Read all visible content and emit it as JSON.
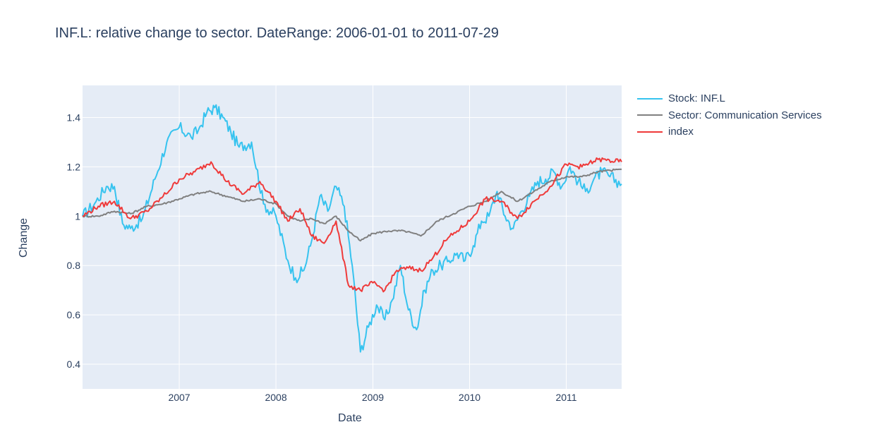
{
  "chart_data": {
    "type": "line",
    "title": "INF.L: relative change to sector.  DateRange: 2006-01-01 to 2011-07-29",
    "xlabel": "Date",
    "ylabel": "Change",
    "x_tick_labels": [
      "2007",
      "2008",
      "2009",
      "2010",
      "2011"
    ],
    "y_tick_labels": [
      "0.4",
      "0.6",
      "0.8",
      "1",
      "1.2",
      "1.4"
    ],
    "xlim": [
      "2006-01-01",
      "2011-07-29"
    ],
    "ylim": [
      0.3,
      1.53
    ],
    "grid": true,
    "legend_position": "right",
    "series": [
      {
        "name": "Stock: INF.L",
        "color": "#36c3ef",
        "x": [
          "2006-01-01",
          "2006-02-15",
          "2006-04-01",
          "2006-05-01",
          "2006-06-01",
          "2006-07-01",
          "2006-08-15",
          "2006-10-01",
          "2006-11-15",
          "2007-01-01",
          "2007-02-15",
          "2007-03-15",
          "2007-04-15",
          "2007-05-15",
          "2007-06-15",
          "2007-07-15",
          "2007-08-15",
          "2007-10-01",
          "2007-11-15",
          "2008-01-01",
          "2008-02-15",
          "2008-03-15",
          "2008-04-15",
          "2008-05-15",
          "2008-06-15",
          "2008-07-15",
          "2008-08-15",
          "2008-09-15",
          "2008-10-15",
          "2008-11-15",
          "2008-12-15",
          "2009-01-15",
          "2009-02-15",
          "2009-03-15",
          "2009-04-15",
          "2009-05-15",
          "2009-06-15",
          "2009-07-15",
          "2009-08-15",
          "2009-09-15",
          "2009-10-15",
          "2009-11-15",
          "2009-12-15",
          "2010-01-15",
          "2010-02-15",
          "2010-03-15",
          "2010-04-15",
          "2010-05-15",
          "2010-06-15",
          "2010-07-15",
          "2010-08-15",
          "2010-09-15",
          "2010-10-15",
          "2010-11-15",
          "2010-12-15",
          "2011-01-15",
          "2011-02-15",
          "2011-03-15",
          "2011-04-15",
          "2011-05-15",
          "2011-06-15",
          "2011-07-29"
        ],
        "values": [
          1.0,
          1.05,
          1.12,
          1.12,
          0.97,
          0.95,
          0.99,
          1.15,
          1.3,
          1.36,
          1.32,
          1.35,
          1.42,
          1.44,
          1.4,
          1.34,
          1.28,
          1.3,
          1.05,
          1.0,
          0.82,
          0.75,
          0.78,
          0.9,
          1.08,
          1.02,
          1.12,
          1.04,
          0.8,
          0.45,
          0.55,
          0.64,
          0.58,
          0.66,
          0.8,
          0.62,
          0.54,
          0.7,
          0.78,
          0.8,
          0.82,
          0.85,
          0.82,
          0.88,
          0.98,
          1.0,
          1.1,
          1.0,
          0.95,
          1.02,
          1.08,
          1.14,
          1.15,
          1.18,
          1.12,
          1.2,
          1.14,
          1.1,
          1.15,
          1.18,
          1.16,
          1.13
        ]
      },
      {
        "name": "Sector: Communication Services",
        "color": "#808080",
        "x": [
          "2006-01-01",
          "2006-03-01",
          "2006-05-01",
          "2006-07-01",
          "2006-09-01",
          "2006-11-01",
          "2007-01-01",
          "2007-03-01",
          "2007-05-01",
          "2007-07-01",
          "2007-09-01",
          "2007-11-01",
          "2008-01-01",
          "2008-02-15",
          "2008-04-01",
          "2008-05-15",
          "2008-07-01",
          "2008-08-15",
          "2008-10-01",
          "2008-11-15",
          "2009-01-01",
          "2009-03-01",
          "2009-05-01",
          "2009-07-01",
          "2009-09-01",
          "2009-11-01",
          "2010-01-01",
          "2010-03-01",
          "2010-05-01",
          "2010-07-01",
          "2010-09-01",
          "2010-11-01",
          "2011-01-01",
          "2011-03-01",
          "2011-05-01",
          "2011-07-29"
        ],
        "values": [
          1.0,
          1.0,
          1.02,
          1.01,
          1.04,
          1.05,
          1.07,
          1.09,
          1.1,
          1.08,
          1.06,
          1.07,
          1.05,
          1.0,
          0.98,
          0.99,
          0.97,
          1.0,
          0.94,
          0.9,
          0.93,
          0.94,
          0.94,
          0.92,
          0.98,
          1.01,
          1.04,
          1.06,
          1.1,
          1.06,
          1.1,
          1.14,
          1.16,
          1.16,
          1.18,
          1.19
        ]
      },
      {
        "name": "index",
        "color": "#ef3a3a",
        "x": [
          "2006-01-01",
          "2006-03-01",
          "2006-05-01",
          "2006-07-01",
          "2006-09-01",
          "2006-11-01",
          "2007-01-01",
          "2007-03-01",
          "2007-05-01",
          "2007-07-01",
          "2007-09-01",
          "2007-11-01",
          "2008-01-01",
          "2008-02-15",
          "2008-04-01",
          "2008-05-15",
          "2008-07-01",
          "2008-08-15",
          "2008-10-01",
          "2008-11-15",
          "2009-01-01",
          "2009-02-15",
          "2009-04-01",
          "2009-05-15",
          "2009-07-01",
          "2009-08-15",
          "2009-10-01",
          "2009-11-15",
          "2010-01-01",
          "2010-03-01",
          "2010-05-01",
          "2010-07-01",
          "2010-09-01",
          "2010-11-01",
          "2011-01-01",
          "2011-03-01",
          "2011-05-01",
          "2011-07-29"
        ],
        "values": [
          1.0,
          1.04,
          1.06,
          0.99,
          1.02,
          1.08,
          1.15,
          1.18,
          1.22,
          1.14,
          1.09,
          1.14,
          1.06,
          0.98,
          1.03,
          0.92,
          0.89,
          0.98,
          0.72,
          0.7,
          0.73,
          0.7,
          0.78,
          0.79,
          0.78,
          0.83,
          0.9,
          0.94,
          0.98,
          1.07,
          1.06,
          0.99,
          1.06,
          1.12,
          1.21,
          1.2,
          1.23,
          1.22
        ]
      }
    ]
  }
}
